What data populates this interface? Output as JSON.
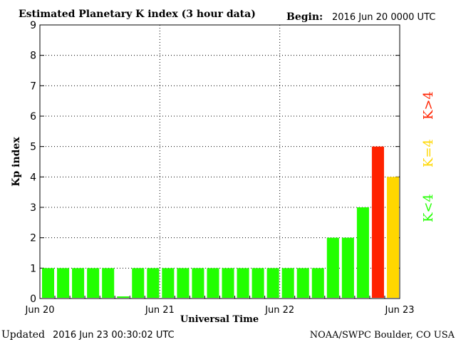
{
  "header": {
    "title": "Estimated Planetary K index (3 hour data)",
    "begin_label": "Begin:",
    "begin_value": "2016 Jun 20 0000 UTC"
  },
  "footer": {
    "updated_label": "Updated",
    "updated_value": "2016 Jun 23 00:30:02 UTC",
    "credit": "NOAA/SWPC Boulder, CO USA"
  },
  "legend": {
    "high": "K>4",
    "equal": "K=4",
    "low": "K<4"
  },
  "colors": {
    "low": "#22ff00",
    "equal": "#ffd700",
    "high": "#ff2200"
  },
  "chart_data": {
    "type": "bar",
    "title": "Estimated Planetary K index (3 hour data)",
    "xlabel": "Universal Time",
    "ylabel": "Kp index",
    "ylim": [
      0,
      9
    ],
    "yticks": [
      "0",
      "1",
      "2",
      "3",
      "4",
      "5",
      "6",
      "7",
      "8",
      "9"
    ],
    "xticks": [
      "Jun 20",
      "Jun 21",
      "Jun 22",
      "Jun 23"
    ],
    "grid": true,
    "bars_per_day": 8,
    "values": [
      1,
      1,
      1,
      1,
      1,
      0.07,
      1,
      1,
      1,
      1,
      1,
      1,
      1,
      1,
      1,
      1,
      1,
      1,
      1,
      2,
      2,
      3,
      5,
      4
    ]
  }
}
